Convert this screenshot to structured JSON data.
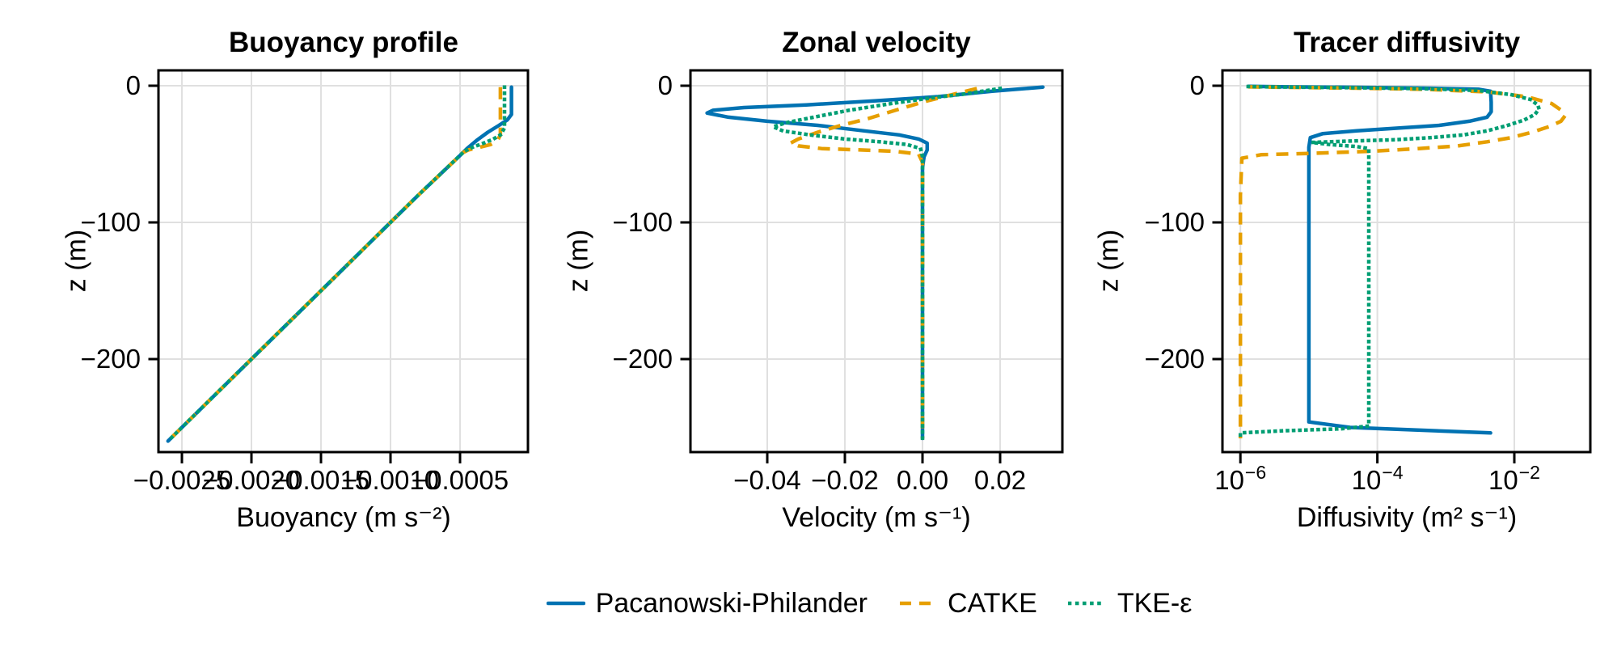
{
  "figure": {
    "background": "#ffffff",
    "grid_color": "#e0e0e0",
    "spine_color": "#000000"
  },
  "legend": {
    "items": [
      {
        "label": "Pacanowski-Philander",
        "color": "#0072B2",
        "style": "solid"
      },
      {
        "label": "CATKE",
        "color": "#E69F00",
        "style": "dashed"
      },
      {
        "label": "TKE-ε",
        "color": "#009E73",
        "style": "dotted"
      }
    ]
  },
  "chart_data": [
    {
      "type": "line",
      "title": "Buoyancy profile",
      "xlabel": "Buoyancy (m s⁻²)",
      "ylabel": "z (m)",
      "xscale": "linear",
      "xlim": [
        -0.00267,
        -1e-05
      ],
      "ylim": [
        -268,
        11
      ],
      "grid": true,
      "xticks": [
        {
          "value": -0.0025,
          "label": "−0.0025"
        },
        {
          "value": -0.002,
          "label": "−0.0020"
        },
        {
          "value": -0.0015,
          "label": "−0.0015"
        },
        {
          "value": -0.001,
          "label": "−0.0010"
        },
        {
          "value": -0.0005,
          "label": "−0.0005"
        }
      ],
      "yticks": [
        {
          "value": 0,
          "label": "0"
        },
        {
          "value": -100,
          "label": "−100"
        },
        {
          "value": -200,
          "label": "−200"
        }
      ],
      "series": [
        {
          "name": "Pacanowski-Philander",
          "color": "#0072B2",
          "style": "solid",
          "points": [
            [
              -0.00013,
              -1
            ],
            [
              -0.00013,
              -21
            ],
            [
              -0.00016,
              -25
            ],
            [
              -0.00022,
              -29
            ],
            [
              -0.0003,
              -34
            ],
            [
              -0.00038,
              -40
            ],
            [
              -0.00045,
              -46
            ],
            [
              -0.0005,
              -51
            ],
            [
              -0.0008,
              -80
            ],
            [
              -0.0015,
              -150
            ],
            [
              -0.002,
              -200
            ],
            [
              -0.0026,
              -260
            ]
          ]
        },
        {
          "name": "CATKE",
          "color": "#E69F00",
          "style": "dashed",
          "points": [
            [
              -0.00021,
              -1
            ],
            [
              -0.00021,
              -36
            ],
            [
              -0.00023,
              -40
            ],
            [
              -0.00028,
              -43
            ],
            [
              -0.00036,
              -45
            ],
            [
              -0.00044,
              -47
            ],
            [
              -0.00048,
              -49
            ],
            [
              -0.00051,
              -52
            ],
            [
              -0.0008,
              -80
            ],
            [
              -0.0015,
              -150
            ],
            [
              -0.002,
              -200
            ],
            [
              -0.0026,
              -260
            ]
          ]
        },
        {
          "name": "TKE-ε",
          "color": "#009E73",
          "style": "dotted",
          "points": [
            [
              -0.00018,
              -1
            ],
            [
              -0.00018,
              -31
            ],
            [
              -0.00021,
              -36
            ],
            [
              -0.00026,
              -39
            ],
            [
              -0.00033,
              -42
            ],
            [
              -0.00041,
              -45
            ],
            [
              -0.00047,
              -48
            ],
            [
              -0.0005,
              -51
            ],
            [
              -0.0008,
              -80
            ],
            [
              -0.0015,
              -150
            ],
            [
              -0.002,
              -200
            ],
            [
              -0.0026,
              -260
            ]
          ]
        }
      ]
    },
    {
      "type": "line",
      "title": "Zonal velocity",
      "xlabel": "Velocity (m s⁻¹)",
      "ylabel": "z (m)",
      "xscale": "linear",
      "xlim": [
        -0.0598,
        0.036
      ],
      "ylim": [
        -268,
        11
      ],
      "grid": true,
      "xticks": [
        {
          "value": -0.04,
          "label": "−0.04"
        },
        {
          "value": -0.02,
          "label": "−0.02"
        },
        {
          "value": 0.0,
          "label": "0.00"
        },
        {
          "value": 0.02,
          "label": "0.02"
        }
      ],
      "yticks": [
        {
          "value": 0,
          "label": "0"
        },
        {
          "value": -100,
          "label": "−100"
        },
        {
          "value": -200,
          "label": "−200"
        }
      ],
      "series": [
        {
          "name": "Pacanowski-Philander",
          "color": "#0072B2",
          "style": "solid",
          "points": [
            [
              0.031,
              -1
            ],
            [
              0.018,
              -4
            ],
            [
              0.004,
              -8
            ],
            [
              -0.012,
              -11
            ],
            [
              -0.03,
              -14
            ],
            [
              -0.046,
              -16
            ],
            [
              -0.054,
              -18
            ],
            [
              -0.0555,
              -20
            ],
            [
              -0.05,
              -23
            ],
            [
              -0.04,
              -26
            ],
            [
              -0.027,
              -29
            ],
            [
              -0.015,
              -33
            ],
            [
              -0.006,
              -36
            ],
            [
              -0.001,
              -39
            ],
            [
              0.0012,
              -42
            ],
            [
              0.0012,
              -47
            ],
            [
              0.0004,
              -52
            ],
            [
              0.0,
              -60
            ],
            [
              0.0,
              -258
            ]
          ]
        },
        {
          "name": "CATKE",
          "color": "#E69F00",
          "style": "dashed",
          "points": [
            [
              0.014,
              -2
            ],
            [
              0.007,
              -7
            ],
            [
              0.0,
              -12
            ],
            [
              -0.007,
              -18
            ],
            [
              -0.014,
              -24
            ],
            [
              -0.021,
              -29
            ],
            [
              -0.027,
              -34
            ],
            [
              -0.032,
              -39
            ],
            [
              -0.034,
              -42
            ],
            [
              -0.032,
              -44
            ],
            [
              -0.026,
              -46
            ],
            [
              -0.016,
              -47
            ],
            [
              -0.007,
              -48
            ],
            [
              -0.001,
              -50
            ],
            [
              0.0,
              -56
            ],
            [
              0.0,
              -258
            ]
          ]
        },
        {
          "name": "TKE-ε",
          "color": "#009E73",
          "style": "dotted",
          "points": [
            [
              0.02,
              -2
            ],
            [
              0.011,
              -6
            ],
            [
              0.002,
              -9
            ],
            [
              -0.008,
              -13
            ],
            [
              -0.019,
              -18
            ],
            [
              -0.028,
              -23
            ],
            [
              -0.035,
              -27
            ],
            [
              -0.0385,
              -30
            ],
            [
              -0.036,
              -33
            ],
            [
              -0.029,
              -36
            ],
            [
              -0.02,
              -39
            ],
            [
              -0.011,
              -41
            ],
            [
              -0.004,
              -43
            ],
            [
              -0.0005,
              -46
            ],
            [
              0.0,
              -52
            ],
            [
              0.0,
              -258
            ]
          ]
        }
      ]
    },
    {
      "type": "line",
      "title": "Tracer diffusivity",
      "xlabel": "Diffusivity (m² s⁻¹)",
      "ylabel": "z (m)",
      "xscale": "log",
      "xlim": [
        5.5e-07,
        0.17
      ],
      "ylim": [
        -268,
        11
      ],
      "grid": true,
      "xticks": [
        {
          "value": 1e-06,
          "label": "10⁻⁶",
          "base": "10",
          "exp": "−6"
        },
        {
          "value": 0.0001,
          "label": "10⁻⁴",
          "base": "10",
          "exp": "−4"
        },
        {
          "value": 0.01,
          "label": "10⁻²",
          "base": "10",
          "exp": "−2"
        }
      ],
      "yticks": [
        {
          "value": 0,
          "label": "0"
        },
        {
          "value": -100,
          "label": "−100"
        },
        {
          "value": -200,
          "label": "−200"
        }
      ],
      "series": [
        {
          "name": "Pacanowski-Philander",
          "color": "#0072B2",
          "style": "solid",
          "points": [
            [
              1.3e-06,
              -0.5
            ],
            [
              5e-06,
              -0.8
            ],
            [
              5e-05,
              -1.2
            ],
            [
              0.0005,
              -1.8
            ],
            [
              0.003,
              -2.6
            ],
            [
              0.0045,
              -4
            ],
            [
              0.0046,
              -12
            ],
            [
              0.0046,
              -19
            ],
            [
              0.004,
              -23
            ],
            [
              0.0022,
              -26
            ],
            [
              0.0008,
              -29
            ],
            [
              0.0002,
              -31
            ],
            [
              5e-05,
              -33
            ],
            [
              1.6e-05,
              -35
            ],
            [
              1.05e-05,
              -38
            ],
            [
              1e-05,
              -45
            ],
            [
              1e-05,
              -246
            ],
            [
              4e-05,
              -250
            ],
            [
              0.0045,
              -254
            ]
          ]
        },
        {
          "name": "CATKE",
          "color": "#E69F00",
          "style": "dashed",
          "points": [
            [
              1.3e-06,
              -0.8
            ],
            [
              5e-06,
              -1.2
            ],
            [
              5e-05,
              -1.8
            ],
            [
              0.0005,
              -2.6
            ],
            [
              0.004,
              -4.5
            ],
            [
              0.015,
              -8
            ],
            [
              0.035,
              -13
            ],
            [
              0.052,
              -19
            ],
            [
              0.055,
              -22
            ],
            [
              0.048,
              -26
            ],
            [
              0.032,
              -30
            ],
            [
              0.018,
              -34
            ],
            [
              0.009,
              -38
            ],
            [
              0.004,
              -41
            ],
            [
              0.0015,
              -44
            ],
            [
              0.0004,
              -46
            ],
            [
              8e-05,
              -48
            ],
            [
              1e-05,
              -49.5
            ],
            [
              2e-06,
              -50.5
            ],
            [
              1.05e-06,
              -53
            ],
            [
              1e-06,
              -80
            ],
            [
              1e-06,
              -258
            ]
          ]
        },
        {
          "name": "TKE-ε",
          "color": "#009E73",
          "style": "dotted",
          "points": [
            [
              1.3e-06,
              -0.6
            ],
            [
              5e-06,
              -1.0
            ],
            [
              5e-05,
              -1.5
            ],
            [
              0.0005,
              -2.2
            ],
            [
              0.003,
              -3.5
            ],
            [
              0.009,
              -6.5
            ],
            [
              0.017,
              -10
            ],
            [
              0.022,
              -14
            ],
            [
              0.023,
              -17
            ],
            [
              0.02,
              -21
            ],
            [
              0.014,
              -25
            ],
            [
              0.008,
              -29
            ],
            [
              0.004,
              -33
            ],
            [
              0.0018,
              -36
            ],
            [
              0.0006,
              -38
            ],
            [
              0.00018,
              -39.5
            ],
            [
              4e-05,
              -40.5
            ],
            [
              1.1e-05,
              -41.5
            ],
            [
              2e-05,
              -43
            ],
            [
              5e-05,
              -44.5
            ],
            [
              7.5e-05,
              -46
            ],
            [
              7.5e-05,
              -249
            ],
            [
              3e-05,
              -251
            ],
            [
              4e-06,
              -252.5
            ],
            [
              1e-06,
              -254
            ],
            [
              1e-06,
              -257
            ]
          ]
        }
      ]
    }
  ]
}
